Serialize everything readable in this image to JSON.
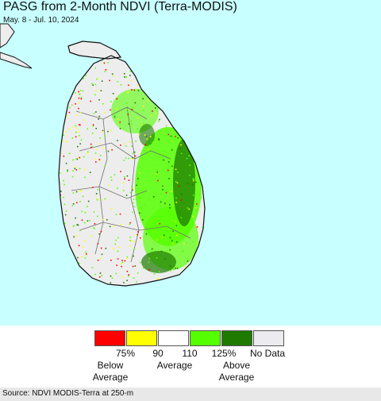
{
  "header": {
    "title": "PASG from 2-Month NDVI (Terra-MODIS)",
    "date_range": "May. 8 - Jul. 10, 2024"
  },
  "map": {
    "colors": {
      "water": "#c8ffff",
      "land_no_data": "#ededed",
      "coast": "#111111",
      "border": "#6f6f6f"
    }
  },
  "legend": {
    "boxes": [
      {
        "color": "#ff0000"
      },
      {
        "color": "#ffff00"
      },
      {
        "color": "#ffffff"
      },
      {
        "color": "#55ff00"
      },
      {
        "color": "#1e7a00"
      },
      {
        "color": "#ecebf0"
      }
    ],
    "ticks": [
      "75%",
      "90",
      "110",
      "125%",
      "No Data"
    ],
    "groups": [
      {
        "line1": "Below",
        "line2": "Average"
      },
      {
        "line1": "Average",
        "line2": ""
      },
      {
        "line1": "Above",
        "line2": "Average"
      }
    ]
  },
  "footer": {
    "source": "Source: NDVI MODIS-Terra at 250-m"
  }
}
